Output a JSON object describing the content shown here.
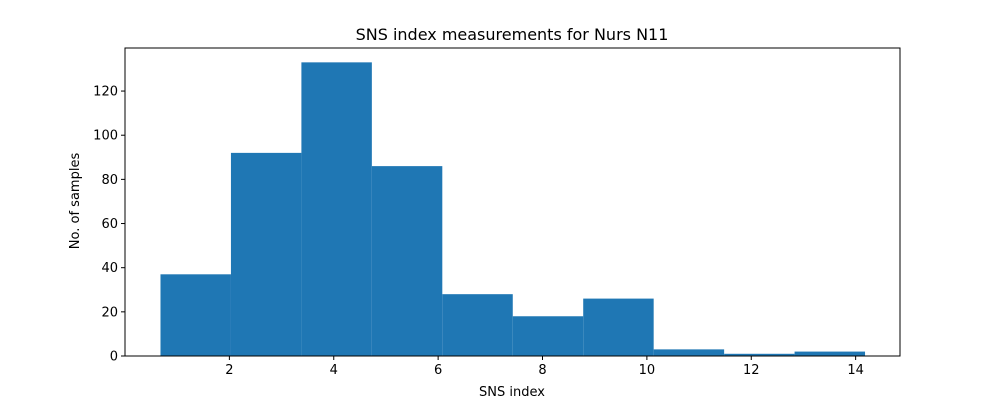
{
  "chart_data": {
    "type": "bar",
    "title": "SNS index measurements for Nurs N11",
    "xlabel": "SNS index",
    "ylabel": "No. of samples",
    "xlim": [
      0.0,
      14.85
    ],
    "ylim": [
      0,
      139.5
    ],
    "xticks": [
      2,
      4,
      6,
      8,
      10,
      12,
      14
    ],
    "yticks": [
      0,
      20,
      40,
      60,
      80,
      100,
      120
    ],
    "bin_edges": [
      0.68,
      2.03,
      3.38,
      4.73,
      6.08,
      7.43,
      8.78,
      10.13,
      11.48,
      12.83,
      14.18
    ],
    "values": [
      37,
      92,
      133,
      86,
      28,
      18,
      26,
      3,
      1,
      2
    ],
    "bar_color": "#1f77b4",
    "grid": false,
    "legend": "none"
  }
}
